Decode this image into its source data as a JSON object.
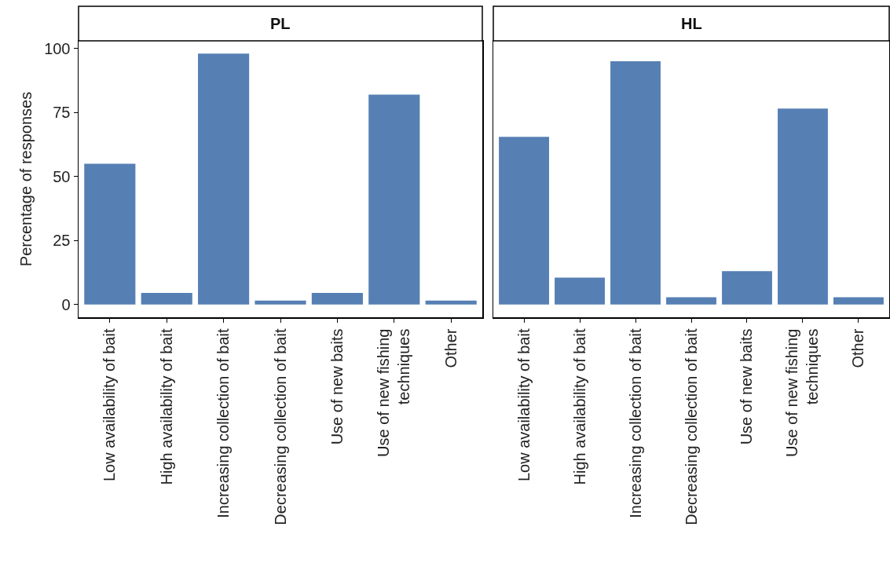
{
  "chart_data": [
    {
      "type": "bar",
      "title": "PL",
      "ylabel": "Percentage of responses",
      "categories": [
        "Low availability of bait",
        "High availability of bait",
        "Increasing collection of bait",
        "Decreasing collection of bait",
        "Use of new baits",
        "Use of new fishing\ntechniques",
        "Other"
      ],
      "values": [
        55,
        4.5,
        98,
        1.5,
        4.5,
        82,
        1.5
      ],
      "color": "#5680b4",
      "ylim": [
        -5,
        103
      ],
      "yticks": [
        0,
        25,
        50,
        75,
        100
      ]
    },
    {
      "type": "bar",
      "title": "HL",
      "categories": [
        "Low availability of bait",
        "High availability of bait",
        "Increasing collection of bait",
        "Decreasing collection of bait",
        "Use of new baits",
        "Use of new fishing\ntechniques",
        "Other"
      ],
      "values": [
        65.5,
        10.5,
        95,
        2.8,
        13,
        76.5,
        2.8
      ],
      "color": "#5680b4",
      "ylim": [
        -5,
        103
      ],
      "yticks": [
        0,
        25,
        50,
        75,
        100
      ],
      "tick_labels": "x"
    }
  ]
}
